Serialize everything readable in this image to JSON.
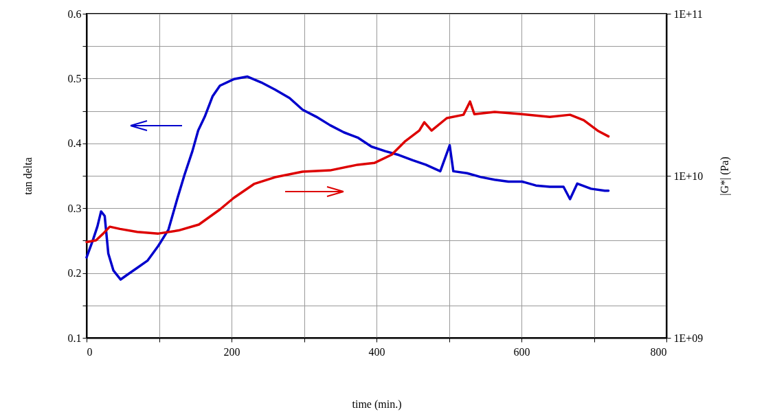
{
  "chart_data": {
    "type": "line",
    "xlabel": "time (min.)",
    "ylabel": "tan delta",
    "y2label": "|G*| (Pa)",
    "xlim": [
      0,
      800
    ],
    "xticks": [
      0,
      {
        "value": 100,
        "label": null
      },
      200,
      {
        "value": 300,
        "label": null
      },
      400,
      {
        "value": 500,
        "label": null
      },
      600,
      {
        "value": 700,
        "label": null
      },
      800
    ],
    "ylim": [
      0.1,
      0.6
    ],
    "yticks": [
      0.1,
      {
        "value": 0.15,
        "label": null
      },
      0.2,
      {
        "value": 0.25,
        "label": null
      },
      0.3,
      {
        "value": 0.35,
        "label": null
      },
      0.4,
      {
        "value": 0.45,
        "label": null
      },
      0.5,
      {
        "value": 0.55,
        "label": null
      },
      0.6
    ],
    "y2lim": [
      1000000000.0,
      100000000000.0
    ],
    "y2ticks": [
      {
        "value": 1000000000.0,
        "label": "1E+09"
      },
      {
        "value": 10000000000.0,
        "label": "1E+10"
      },
      {
        "value": 100000000000.0,
        "label": "1E+11"
      }
    ],
    "log": "y2",
    "grid": true,
    "line_style": "solid",
    "marker": "none",
    "series": [
      {
        "color": "#0000cc",
        "x": [
          0,
          8.5,
          15,
          20,
          25,
          30,
          37,
          47,
          57,
          70,
          84,
          99,
          113,
          125,
          135,
          146,
          154,
          163,
          174,
          184,
          203,
          222,
          241,
          260,
          280,
          298,
          317,
          336,
          355,
          374,
          393,
          412,
          431,
          450,
          468,
          488,
          501,
          506,
          525,
          544,
          563,
          582,
          601,
          620,
          639,
          658,
          667,
          677,
          696,
          715,
          720
        ],
        "values": [
          0.224,
          0.25,
          0.272,
          0.295,
          0.288,
          0.23,
          0.204,
          0.19,
          0.198,
          0.208,
          0.219,
          0.242,
          0.267,
          0.314,
          0.351,
          0.388,
          0.42,
          0.441,
          0.473,
          0.489,
          0.499,
          0.503,
          0.494,
          0.483,
          0.47,
          0.452,
          0.441,
          0.428,
          0.417,
          0.409,
          0.395,
          0.388,
          0.382,
          0.374,
          0.367,
          0.357,
          0.397,
          0.357,
          0.354,
          0.348,
          0.344,
          0.341,
          0.341,
          0.335,
          0.333,
          0.333,
          0.314,
          0.338,
          0.33,
          0.327,
          0.327
        ]
      },
      {
        "color": "#dd0000",
        "axis": "y2",
        "x": [
          0,
          13,
          23,
          32,
          46,
          70,
          99,
          127,
          155,
          184,
          203,
          231,
          260,
          298,
          336,
          374,
          397,
          421,
          440,
          459,
          466,
          476,
          497,
          520,
          529,
          535,
          563,
          601,
          639,
          667,
          686,
          705,
          720
        ],
        "values": [
          3900000000.0,
          4000000000.0,
          4400000000.0,
          4850000000.0,
          4700000000.0,
          4500000000.0,
          4400000000.0,
          4600000000.0,
          5000000000.0,
          6200000000.0,
          7300000000.0,
          8900000000.0,
          9800000000.0,
          10600000000.0,
          10800000000.0,
          11700000000.0,
          12000000000.0,
          13500000000.0,
          16400000000.0,
          19000000000.0,
          21400000000.0,
          19000000000.0,
          22700000000.0,
          23800000000.0,
          28700000000.0,
          24000000000.0,
          24800000000.0,
          24000000000.0,
          23100000000.0,
          23800000000.0,
          22000000000.0,
          19000000000.0,
          17500000000.0
        ]
      }
    ]
  }
}
